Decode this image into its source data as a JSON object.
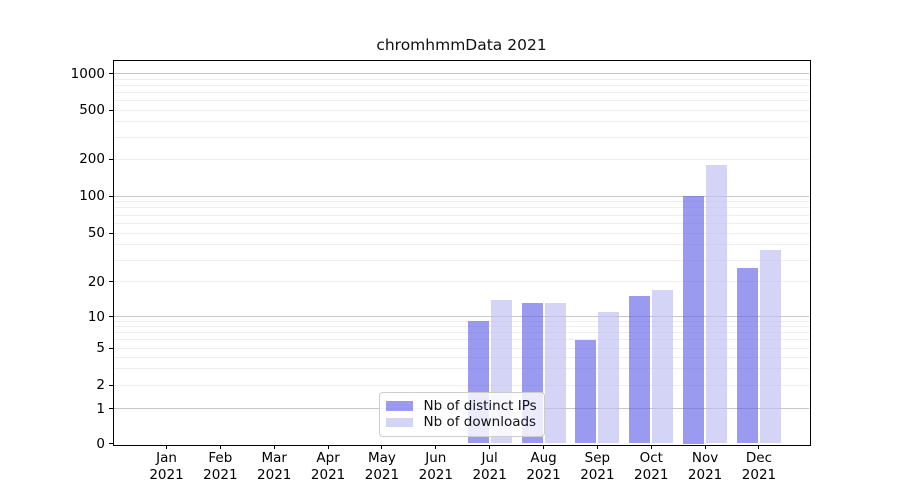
{
  "figure": {
    "title": "chromhmmData 2021"
  },
  "colors": {
    "bar_distinct_ips": "rgba(102,102,232,0.66)",
    "bar_downloads": "rgba(190,190,241,0.66)",
    "grid_major": "#c6c6c6",
    "grid_minor": "#eeeeee",
    "axis": "#000000",
    "legend_border": "#cccccc"
  },
  "legend": {
    "items": [
      {
        "label": "Nb of distinct IPs",
        "series": "distinct-ips"
      },
      {
        "label": "Nb of downloads",
        "series": "downloads"
      }
    ]
  },
  "y_axis": {
    "ticks": [
      {
        "value": 0,
        "label": "0"
      },
      {
        "value": 1,
        "label": "1"
      },
      {
        "value": 2,
        "label": "2"
      },
      {
        "value": 5,
        "label": "5"
      },
      {
        "value": 10,
        "label": "10"
      },
      {
        "value": 20,
        "label": "20"
      },
      {
        "value": 50,
        "label": "50"
      },
      {
        "value": 100,
        "label": "100"
      },
      {
        "value": 200,
        "label": "200"
      },
      {
        "value": 500,
        "label": "500"
      },
      {
        "value": 1000,
        "label": "1000"
      }
    ]
  },
  "x_axis": {
    "months": [
      {
        "month": "Jan",
        "year": "2021"
      },
      {
        "month": "Feb",
        "year": "2021"
      },
      {
        "month": "Mar",
        "year": "2021"
      },
      {
        "month": "Apr",
        "year": "2021"
      },
      {
        "month": "May",
        "year": "2021"
      },
      {
        "month": "Jun",
        "year": "2021"
      },
      {
        "month": "Jul",
        "year": "2021"
      },
      {
        "month": "Aug",
        "year": "2021"
      },
      {
        "month": "Sep",
        "year": "2021"
      },
      {
        "month": "Oct",
        "year": "2021"
      },
      {
        "month": "Nov",
        "year": "2021"
      },
      {
        "month": "Dec",
        "year": "2021"
      }
    ]
  },
  "chart_data": {
    "type": "bar",
    "title": "chromhmmData 2021",
    "categories": [
      "Jan 2021",
      "Feb 2021",
      "Mar 2021",
      "Apr 2021",
      "May 2021",
      "Jun 2021",
      "Jul 2021",
      "Aug 2021",
      "Sep 2021",
      "Oct 2021",
      "Nov 2021",
      "Dec 2021"
    ],
    "series": [
      {
        "name": "Nb of distinct IPs",
        "color": "rgba(102,102,232,0.66)",
        "values": [
          0,
          0,
          0,
          0,
          0,
          0,
          9,
          13,
          6,
          15,
          100,
          26
        ]
      },
      {
        "name": "Nb of downloads",
        "color": "rgba(190,190,241,0.66)",
        "values": [
          0,
          0,
          0,
          0,
          0,
          0,
          14,
          13,
          11,
          17,
          180,
          36
        ]
      }
    ],
    "xlabel": "",
    "ylabel": "",
    "yscale": "log-like (0,1,2,5,10,20,50,100,200,500,1000)",
    "y_ticks": [
      0,
      1,
      2,
      5,
      10,
      20,
      50,
      100,
      200,
      500,
      1000
    ],
    "grid": "horizontal: gray majors at powers of 10, light log minors",
    "legend_position": "inside bottom-center"
  }
}
